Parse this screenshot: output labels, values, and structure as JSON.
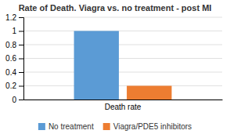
{
  "chart_data": {
    "type": "bar",
    "title": "Rate of Death. Viagra vs. no treatment - post MI",
    "categories": [
      "Death rate"
    ],
    "series": [
      {
        "name": "No treatment",
        "color": "#5B9BD5",
        "values": [
          1.0
        ]
      },
      {
        "name": "Viagra/PDE5 inhibitors",
        "color": "#ED7D31",
        "values": [
          0.2
        ]
      }
    ],
    "ylim": [
      0,
      1.2
    ],
    "yticks": [
      0,
      0.2,
      0.4,
      0.6,
      0.8,
      1,
      1.2
    ],
    "grid": true,
    "legend": "bottom"
  }
}
